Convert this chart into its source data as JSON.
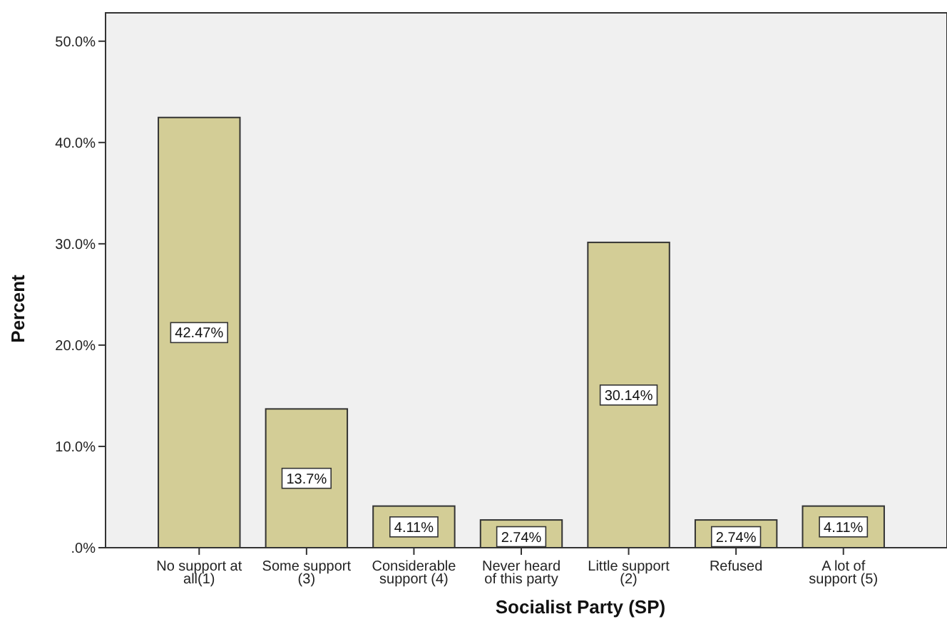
{
  "chart_data": {
    "type": "bar",
    "xlabel": "Socialist Party (SP)",
    "ylabel": "Percent",
    "categories": [
      "No support at all(1)",
      "Some support (3)",
      "Considerable support (4)",
      "Never heard of this party",
      "Little support (2)",
      "Refused",
      "A lot of support (5)"
    ],
    "values": [
      42.47,
      13.7,
      4.11,
      2.74,
      30.14,
      2.74,
      4.11
    ],
    "value_labels": [
      "42.47%",
      "13.7%",
      "4.11%",
      "2.74%",
      "30.14%",
      "2.74%",
      "4.11%"
    ],
    "color": "#d3cd96",
    "ylim": [
      0,
      52.8
    ],
    "yticks": [
      {
        "value": 0,
        "label": ".0%"
      },
      {
        "value": 10,
        "label": "10.0%"
      },
      {
        "value": 20,
        "label": "20.0%"
      },
      {
        "value": 30,
        "label": "30.0%"
      },
      {
        "value": 40,
        "label": "40.0%"
      },
      {
        "value": 50,
        "label": "50.0%"
      }
    ],
    "grid": false
  }
}
